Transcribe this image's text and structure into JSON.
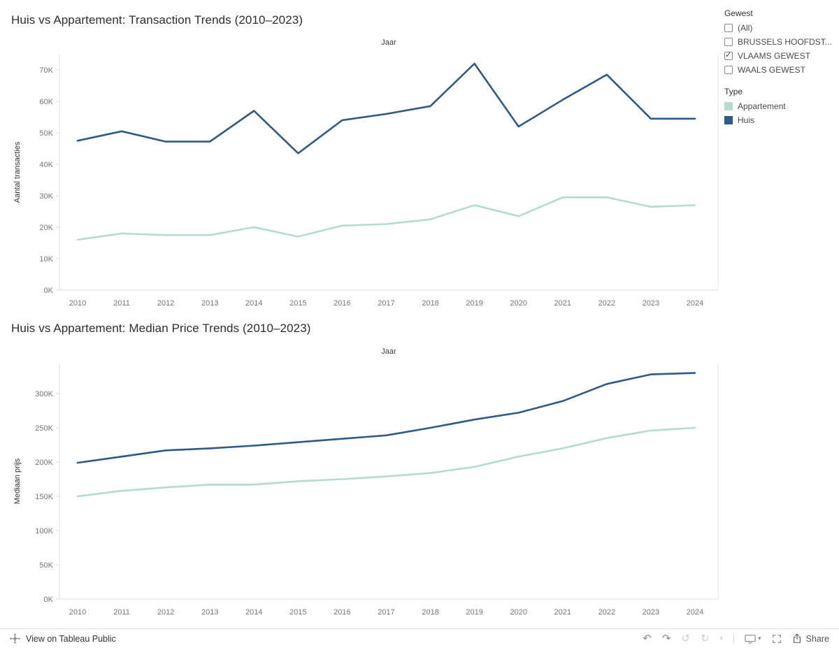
{
  "filters": {
    "gewest": {
      "title": "Gewest",
      "options": [
        {
          "label": "(All)",
          "checked": false
        },
        {
          "label": "BRUSSELS HOOFDST...",
          "checked": false
        },
        {
          "label": "VLAAMS GEWEST",
          "checked": true
        },
        {
          "label": "WAALS GEWEST",
          "checked": false
        }
      ]
    },
    "type_legend": {
      "title": "Type",
      "items": [
        {
          "label": "Appartement",
          "color": "#b3dccc"
        },
        {
          "label": "Huis",
          "color": "#2d5a87"
        }
      ]
    }
  },
  "toolbar": {
    "view_label": "View on Tableau Public",
    "share_label": "Share"
  },
  "chart_data": [
    {
      "type": "line",
      "title": "Huis vs Appartement: Transaction Trends (2010–2023)",
      "xlabel": "Jaar",
      "ylabel": "Aantal transacties",
      "grid": false,
      "legend_position": "right",
      "x": [
        "2010",
        "2011",
        "2012",
        "2013",
        "2014",
        "2015",
        "2016",
        "2017",
        "2018",
        "2019",
        "2020",
        "2021",
        "2022",
        "2023",
        "2024"
      ],
      "ylim": [
        0,
        75000
      ],
      "yticks": [
        0,
        10000,
        20000,
        30000,
        40000,
        50000,
        60000,
        70000
      ],
      "ytick_labels": [
        "0K",
        "10K",
        "20K",
        "30K",
        "40K",
        "50K",
        "60K",
        "70K"
      ],
      "series": [
        {
          "name": "Appartement",
          "color": "#b3dccc",
          "values": [
            16000,
            18000,
            17500,
            17500,
            20000,
            17000,
            20500,
            21000,
            22500,
            27000,
            23500,
            29500,
            29500,
            26500,
            27000
          ]
        },
        {
          "name": "Huis",
          "color": "#2d5a87",
          "values": [
            47500,
            50500,
            47200,
            47200,
            57000,
            43500,
            54000,
            56000,
            58500,
            72000,
            52000,
            60500,
            68500,
            54500,
            54500
          ]
        }
      ]
    },
    {
      "type": "line",
      "title": "Huis vs Appartement: Median Price Trends (2010–2023)",
      "xlabel": "Jaar",
      "ylabel": "Mediaan prijs",
      "grid": false,
      "legend_position": "right",
      "x": [
        "2010",
        "2011",
        "2012",
        "2013",
        "2014",
        "2015",
        "2016",
        "2017",
        "2018",
        "2019",
        "2020",
        "2021",
        "2022",
        "2023",
        "2024"
      ],
      "ylim": [
        0,
        345000
      ],
      "yticks": [
        0,
        50000,
        100000,
        150000,
        200000,
        250000,
        300000
      ],
      "ytick_labels": [
        "0K",
        "50K",
        "100K",
        "150K",
        "200K",
        "250K",
        "300K"
      ],
      "series": [
        {
          "name": "Appartement",
          "color": "#b3dccc",
          "values": [
            150000,
            158000,
            163000,
            167000,
            167000,
            172000,
            175000,
            179000,
            184000,
            193000,
            208000,
            220000,
            235000,
            246000,
            250000
          ]
        },
        {
          "name": "Huis",
          "color": "#2d5a87",
          "values": [
            199000,
            208000,
            217000,
            220000,
            224000,
            229000,
            234000,
            239000,
            250000,
            262000,
            272000,
            289000,
            314000,
            328000,
            330000
          ]
        }
      ]
    }
  ]
}
